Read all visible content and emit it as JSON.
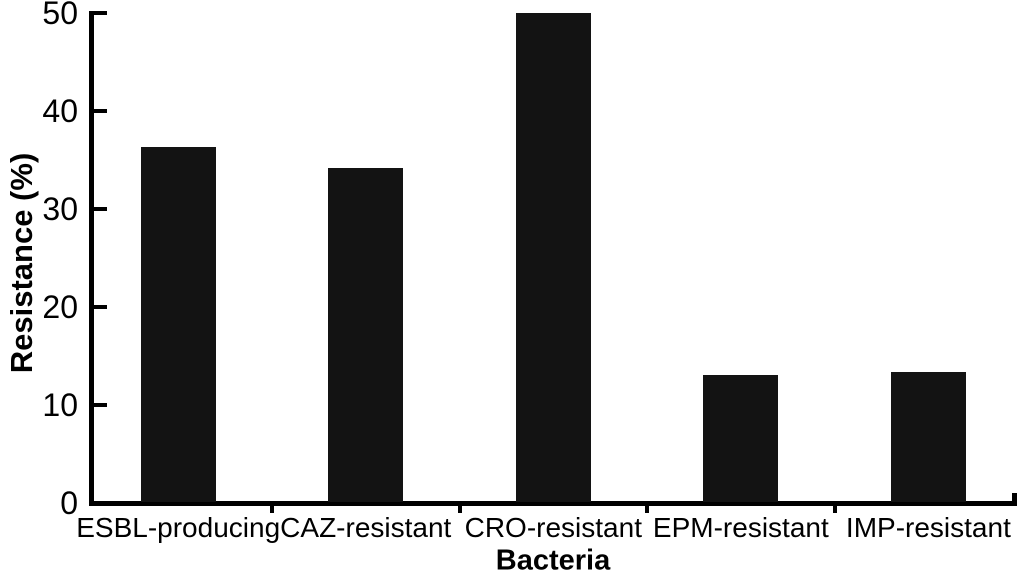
{
  "chart_data": {
    "type": "bar",
    "title": "",
    "xlabel": "Bacteria",
    "ylabel": "Resistance (%)",
    "categories": [
      "ESBL-producing",
      "CAZ-resistant",
      "CRO-resistant",
      "EPM-resistant",
      "IMP-resistant"
    ],
    "values": [
      36.2,
      34.1,
      49.9,
      13.0,
      13.3
    ],
    "ylim": [
      0,
      50
    ],
    "yticks": [
      0,
      10,
      20,
      30,
      40,
      50
    ],
    "grid": false,
    "legend_position": "none",
    "bar_color": "#131313",
    "axis_color": "#000000",
    "text_color": "#000000",
    "background_color": "#ffffff"
  }
}
